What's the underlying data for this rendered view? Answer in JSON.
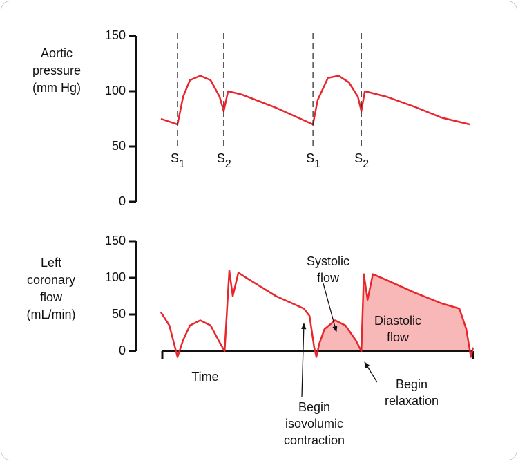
{
  "chart_data": [
    {
      "type": "line",
      "y_label": [
        "Aortic",
        "pressure",
        "(mm Hg)"
      ],
      "color": "#e8262b",
      "xlim": [
        0,
        100
      ],
      "ylim": [
        0,
        150
      ],
      "yticks": [
        0,
        50,
        100,
        150
      ],
      "x": [
        0,
        5.3,
        7.1,
        9.3,
        12.6,
        15.9,
        18.8,
        20.1,
        21.5,
        25.9,
        36.9,
        48.7,
        50.2,
        53.5,
        56.9,
        60.2,
        63.1,
        64.2,
        65.3,
        72.3,
        81.2,
        90,
        98.9
      ],
      "values": [
        75,
        70,
        95,
        110,
        114,
        110,
        95,
        82,
        100,
        97,
        85,
        70,
        92,
        112,
        114,
        108,
        95,
        82,
        100,
        95,
        86,
        76,
        70
      ],
      "annotations": [
        {
          "x": 5.3,
          "label": "S",
          "subscript": "1"
        },
        {
          "x": 20.1,
          "label": "S",
          "subscript": "2"
        },
        {
          "x": 48.7,
          "label": "S",
          "subscript": "1"
        },
        {
          "x": 64.2,
          "label": "S",
          "subscript": "2"
        }
      ]
    },
    {
      "type": "line",
      "y_label": [
        "Left",
        "coronary",
        "flow",
        "(mL/min)"
      ],
      "x_label": "Time",
      "color": "#e8262b",
      "shade_color": "#f9b8b8",
      "xlim": [
        0,
        100
      ],
      "ylim": [
        0,
        150
      ],
      "yticks": [
        0,
        50,
        100,
        150
      ],
      "shaded_range": [
        49.8,
        100
      ],
      "x": [
        0,
        2.7,
        5.3,
        7.1,
        9.3,
        12.6,
        15.9,
        18.8,
        20.4,
        21.9,
        23,
        24.8,
        28.1,
        36.9,
        45.8,
        47.6,
        49.1,
        49.8,
        50.7,
        52.4,
        55.8,
        59.1,
        62.4,
        64.2,
        65,
        66.2,
        67.9,
        72.3,
        81.2,
        90,
        95.6,
        97.8,
        99.3,
        100
      ],
      "values": [
        53,
        35,
        -8,
        15,
        35,
        42,
        35,
        12,
        0,
        110,
        75,
        107,
        98,
        75,
        58,
        48,
        5,
        -8,
        10,
        30,
        42,
        35,
        15,
        0,
        105,
        70,
        105,
        97,
        80,
        65,
        58,
        30,
        -8,
        5
      ],
      "notes": {
        "systolic": [
          "Systolic",
          "flow"
        ],
        "diastolic": [
          "Diastolic",
          "flow"
        ],
        "contraction": [
          "Begin",
          "isovolumic",
          "contraction"
        ],
        "relaxation": [
          "Begin",
          "relaxation"
        ]
      }
    }
  ]
}
